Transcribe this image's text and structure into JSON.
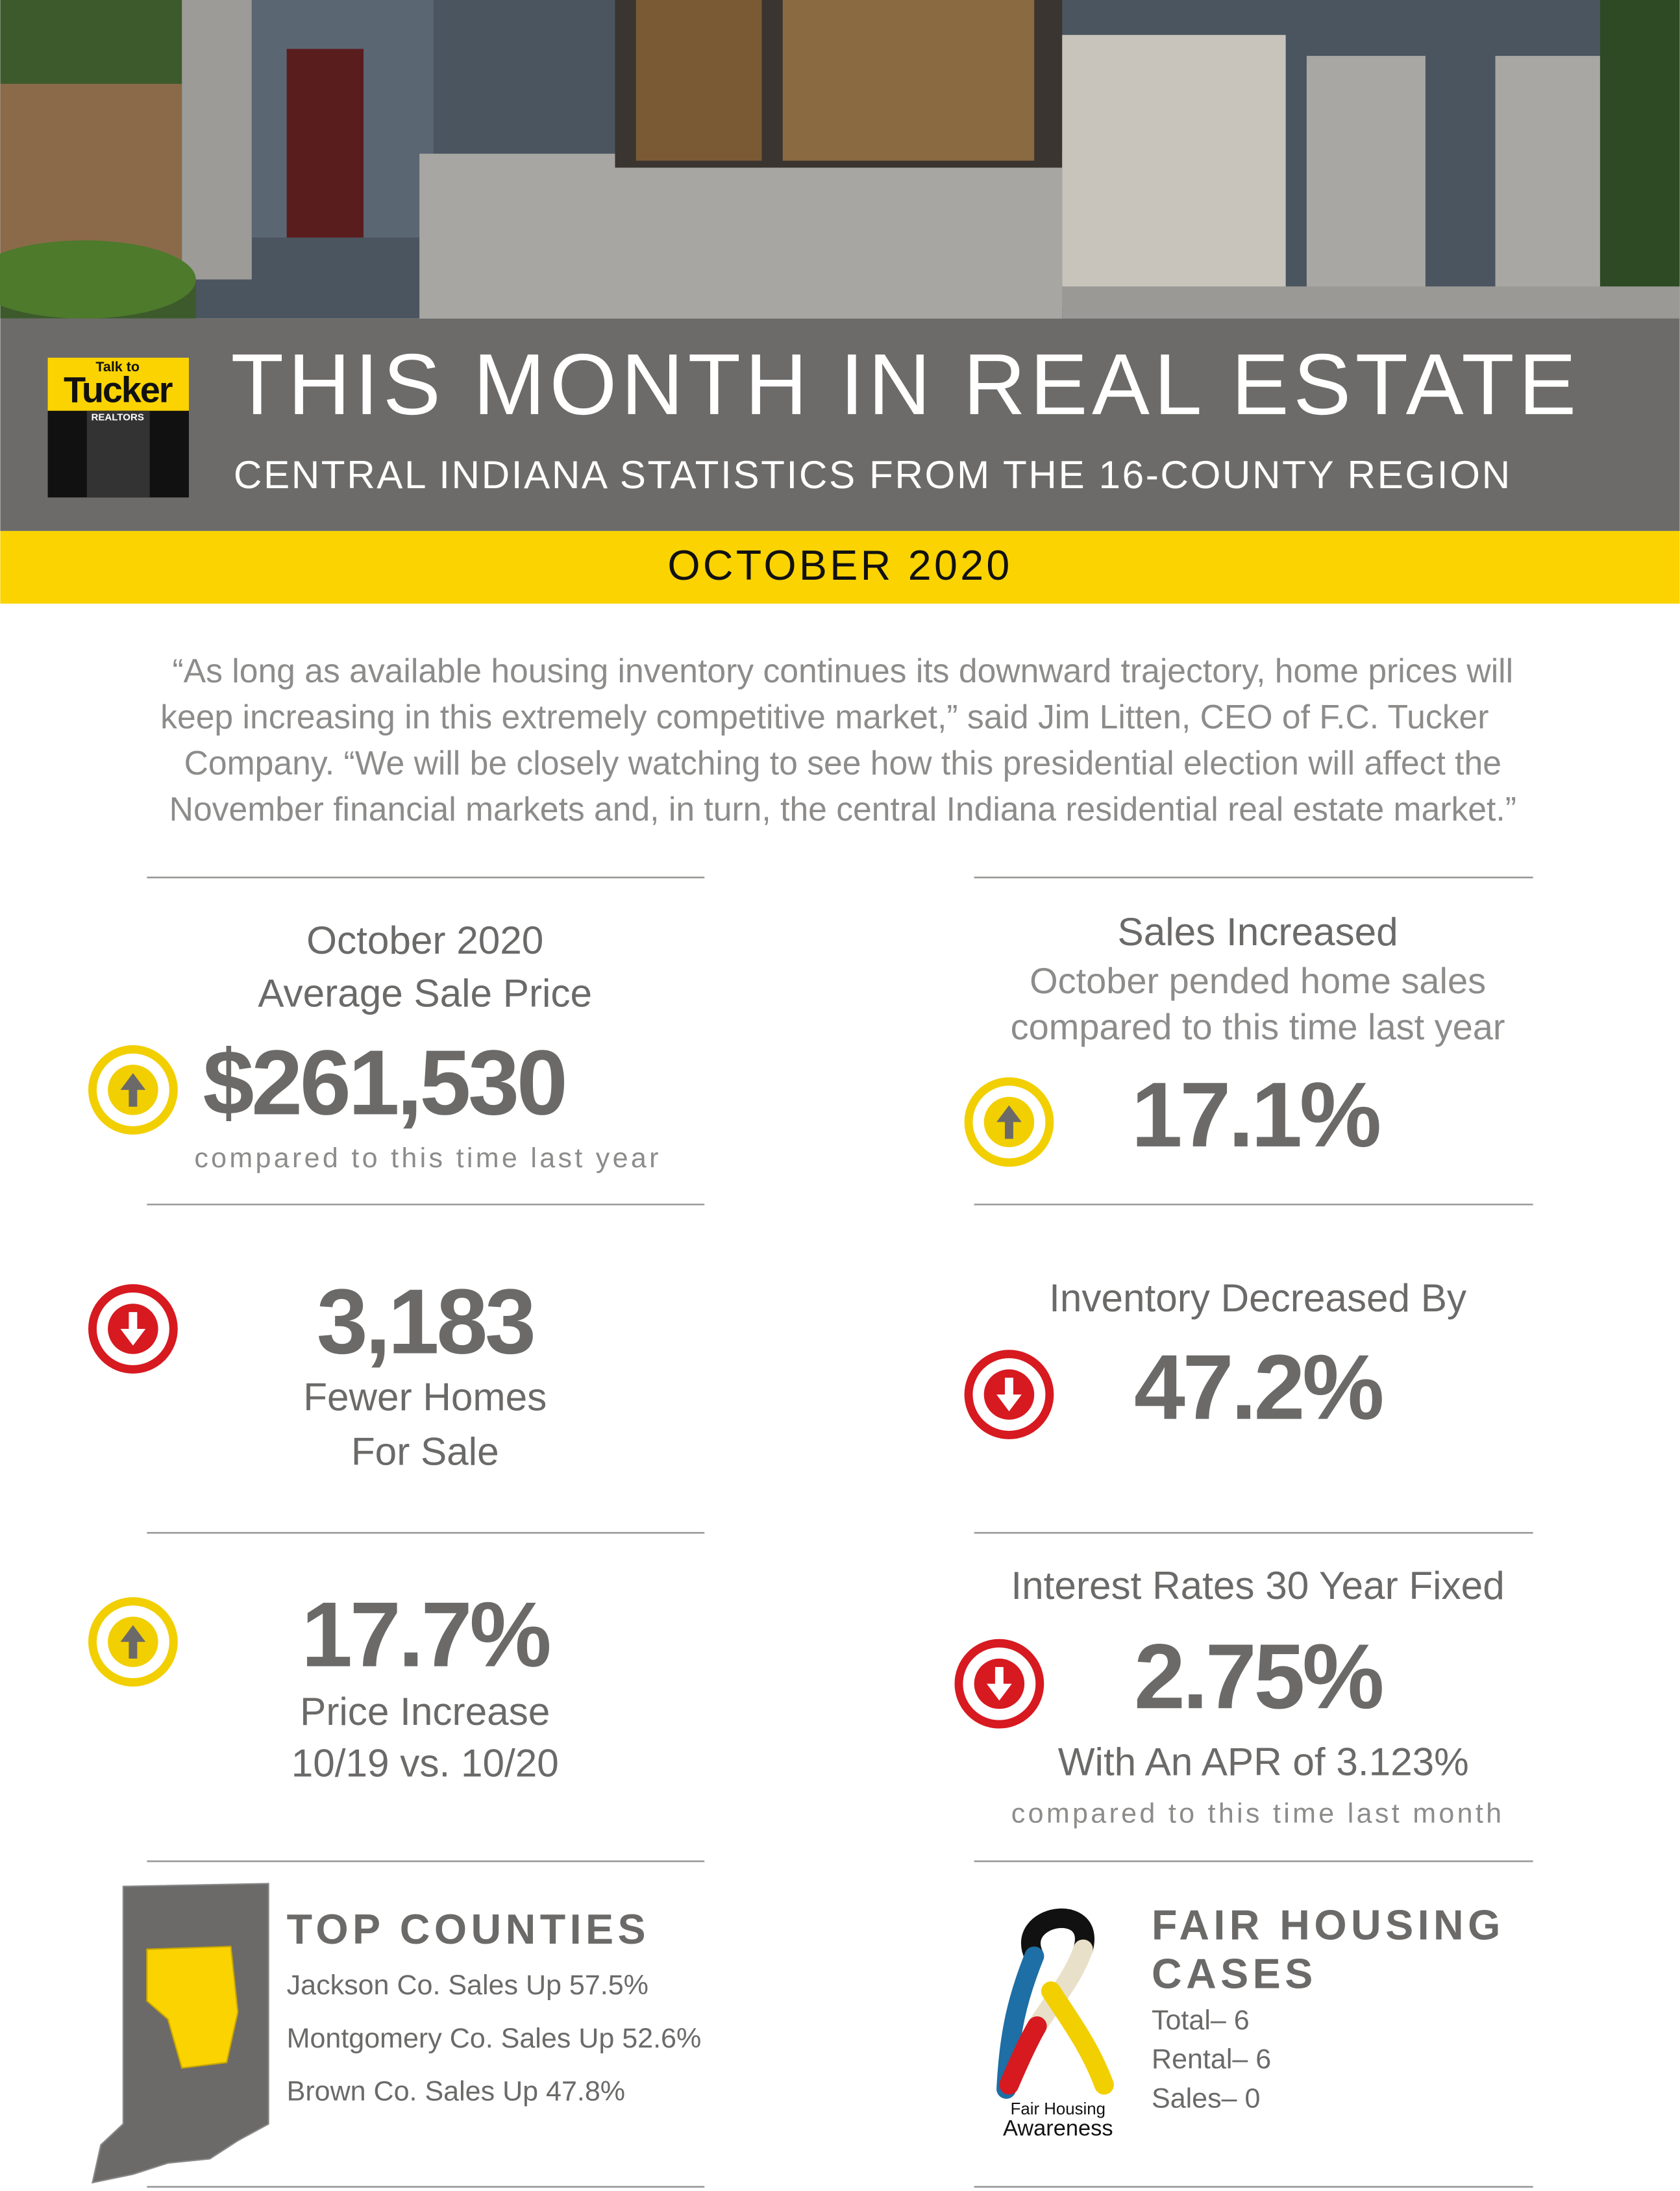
{
  "header": {
    "logo": {
      "top": "Talk to",
      "name": "Tucker",
      "sub": "REALTORS"
    },
    "title": "THIS MONTH IN REAL ESTATE",
    "subtitle": "CENTRAL INDIANA STATISTICS FROM THE 16-COUNTY REGION",
    "date": "OCTOBER 2020"
  },
  "quote": [
    "“As long as available housing inventory continues its downward trajectory, home prices will",
    "keep increasing in this extremely competitive market,” said Jim Litten, CEO of F.C. Tucker",
    "Company. “We will be closely watching to see how this presidential election will affect the",
    "November financial markets and, in turn, the central Indiana residential real estate market.”"
  ],
  "stats": [
    {
      "heading": [
        "October 2020",
        "Average Sale Price"
      ],
      "value": "$261,530",
      "note": "compared to this time last year"
    },
    {
      "heading": [
        "Sales Increased",
        "October pended home sales",
        "compared to this time last year"
      ],
      "value": "17.1%"
    },
    {
      "value": "3,183",
      "caption": [
        "Fewer Homes",
        "For Sale"
      ]
    },
    {
      "heading": [
        "Inventory Decreased By"
      ],
      "value": "47.2%"
    },
    {
      "value": "17.7%",
      "caption": [
        "Price Increase",
        "10/19 vs. 10/20"
      ]
    },
    {
      "heading": [
        "Interest Rates 30 Year Fixed"
      ],
      "value": "2.75%",
      "caption": [
        "With An APR of 3.123%"
      ],
      "note": "compared to this time last month"
    }
  ],
  "top_counties": {
    "title": "TOP COUNTIES",
    "items": [
      "Jackson Co. Sales Up 57.5%",
      "Montgomery Co.  Sales Up 52.6%",
      "Brown Co. Sales Up 47.8%"
    ]
  },
  "fair_housing": {
    "title": [
      "FAIR HOUSING",
      "CASES"
    ],
    "items": [
      "Total– 6",
      "Rental– 6",
      "Sales– 0"
    ],
    "logo": [
      "Fair Housing",
      "Awareness"
    ]
  }
}
